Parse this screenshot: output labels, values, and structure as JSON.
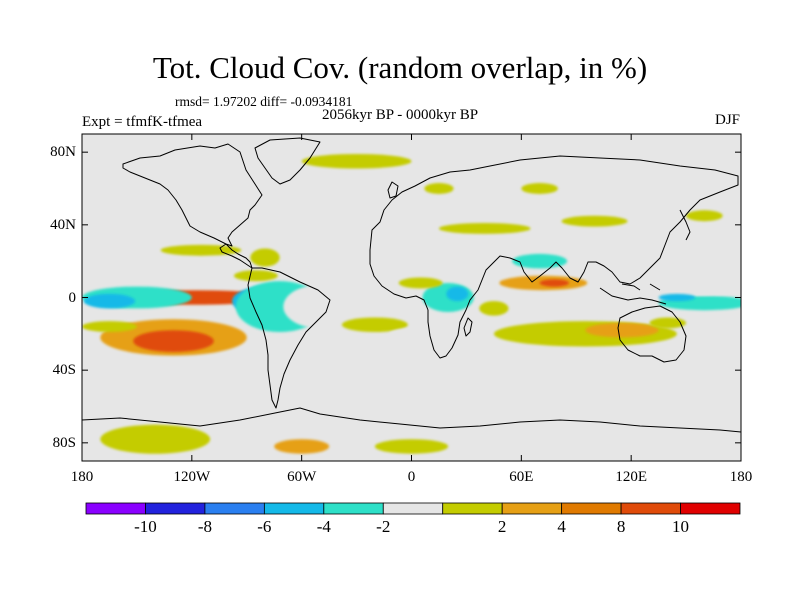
{
  "header": {
    "title": "Tot. Cloud Cov. (random overlap, in %)",
    "stats": "rmsd= 1.97202 diff= -0.0934181",
    "experiment": "Expt = tfmfK-tfmea",
    "period": "2056kyr BP - 0000kyr BP",
    "season": "DJF"
  },
  "map": {
    "projection": "cylindrical equidistant",
    "lon_range": [
      -180,
      180
    ],
    "lat_range": [
      -90,
      90
    ],
    "lat_ticks": [
      {
        "lat": 80,
        "label": "80N"
      },
      {
        "lat": 40,
        "label": "40N"
      },
      {
        "lat": 0,
        "label": "0"
      },
      {
        "lat": -40,
        "label": "40S"
      },
      {
        "lat": -80,
        "label": "80S"
      }
    ],
    "lon_ticks": [
      {
        "lon": -180,
        "label": "180"
      },
      {
        "lon": -120,
        "label": "120W"
      },
      {
        "lon": -60,
        "label": "60W"
      },
      {
        "lon": 0,
        "label": "0"
      },
      {
        "lon": 60,
        "label": "60E"
      },
      {
        "lon": 120,
        "label": "120E"
      },
      {
        "lon": 180,
        "label": "180"
      }
    ],
    "background_color": "#e6e6e6",
    "regions": [
      {
        "lon": -115,
        "lat": 0,
        "rlon": 35,
        "rlat": 2,
        "level": 10
      },
      {
        "lon": -118,
        "lat": 0,
        "rlon": 44,
        "rlat": 4,
        "level": 8
      },
      {
        "lon": -150,
        "lat": 0,
        "rlon": 30,
        "rlat": 6,
        "level": -4
      },
      {
        "lon": -165,
        "lat": -2,
        "rlon": 14,
        "rlat": 4,
        "level": -6
      },
      {
        "lon": -80,
        "lat": -2,
        "rlon": 18,
        "rlat": 8,
        "level": -6
      },
      {
        "lon": -72,
        "lat": -5,
        "rlon": 24,
        "rlat": 14,
        "level": -4
      },
      {
        "lon": -50,
        "lat": -5,
        "rlon": 20,
        "rlat": 12,
        "level": -2
      },
      {
        "lon": -130,
        "lat": -22,
        "rlon": 40,
        "rlat": 10,
        "level": 4
      },
      {
        "lon": -130,
        "lat": -24,
        "rlon": 22,
        "rlat": 6,
        "level": 8
      },
      {
        "lon": -165,
        "lat": -16,
        "rlon": 15,
        "rlat": 3,
        "level": 2
      },
      {
        "lon": -115,
        "lat": 26,
        "rlon": 22,
        "rlat": 3,
        "level": 2
      },
      {
        "lon": -80,
        "lat": 22,
        "rlon": 8,
        "rlat": 5,
        "level": 2
      },
      {
        "lon": -85,
        "lat": 12,
        "rlon": 12,
        "rlat": 3,
        "level": 2
      },
      {
        "lon": -20,
        "lat": -15,
        "rlon": 18,
        "rlat": 4,
        "level": 2
      },
      {
        "lon": 0,
        "lat": -20,
        "rlon": 12,
        "rlat": 3,
        "level": -2
      },
      {
        "lon": -30,
        "lat": -35,
        "rlon": 18,
        "rlat": 3,
        "level": -2
      },
      {
        "lon": 20,
        "lat": 0,
        "rlon": 14,
        "rlat": 8,
        "level": -4
      },
      {
        "lon": 25,
        "lat": 2,
        "rlon": 6,
        "rlat": 4,
        "level": -6
      },
      {
        "lon": 5,
        "lat": 8,
        "rlon": 12,
        "rlat": 3,
        "level": 2
      },
      {
        "lon": 40,
        "lat": -25,
        "rlon": 10,
        "rlat": 4,
        "level": -2
      },
      {
        "lon": 45,
        "lat": -6,
        "rlon": 8,
        "rlat": 4,
        "level": 2
      },
      {
        "lon": 72,
        "lat": 8,
        "rlon": 24,
        "rlat": 4,
        "level": 4
      },
      {
        "lon": 78,
        "lat": 8,
        "rlon": 8,
        "rlat": 2,
        "level": 8
      },
      {
        "lon": 95,
        "lat": -20,
        "rlon": 50,
        "rlat": 7,
        "level": 2
      },
      {
        "lon": 115,
        "lat": -18,
        "rlon": 20,
        "rlat": 4,
        "level": 4
      },
      {
        "lon": 95,
        "lat": -35,
        "rlon": 35,
        "rlat": 4,
        "level": -2
      },
      {
        "lon": 160,
        "lat": -3,
        "rlon": 25,
        "rlat": 4,
        "level": -4
      },
      {
        "lon": 155,
        "lat": 4,
        "rlon": 30,
        "rlat": 3,
        "level": -2
      },
      {
        "lon": 145,
        "lat": 0,
        "rlon": 10,
        "rlat": 2,
        "level": -6
      },
      {
        "lon": 140,
        "lat": -14,
        "rlon": 10,
        "rlat": 3,
        "level": 2
      },
      {
        "lon": 90,
        "lat": 30,
        "rlon": 25,
        "rlat": 6,
        "level": -2
      },
      {
        "lon": 70,
        "lat": 20,
        "rlon": 15,
        "rlat": 4,
        "level": -4
      },
      {
        "lon": 40,
        "lat": 38,
        "rlon": 25,
        "rlat": 3,
        "level": 2
      },
      {
        "lon": 100,
        "lat": 42,
        "rlon": 18,
        "rlat": 3,
        "level": 2
      },
      {
        "lon": 120,
        "lat": 28,
        "rlon": 12,
        "rlat": 5,
        "level": -2
      },
      {
        "lon": 155,
        "lat": 28,
        "rlon": 30,
        "rlat": 5,
        "level": -2
      },
      {
        "lon": 160,
        "lat": 45,
        "rlon": 10,
        "rlat": 3,
        "level": 2
      },
      {
        "lon": -30,
        "lat": 60,
        "rlon": 35,
        "rlat": 3,
        "level": -2
      },
      {
        "lon": -30,
        "lat": 75,
        "rlon": 30,
        "rlat": 4,
        "level": 2
      },
      {
        "lon": 60,
        "lat": 82,
        "rlon": 50,
        "rlat": 4,
        "level": -2
      },
      {
        "lon": 70,
        "lat": 60,
        "rlon": 10,
        "rlat": 3,
        "level": 2
      },
      {
        "lon": 15,
        "lat": 60,
        "rlon": 8,
        "rlat": 3,
        "level": 2
      },
      {
        "lon": -130,
        "lat": 50,
        "rlon": 8,
        "rlat": 3,
        "level": -2
      },
      {
        "lon": -150,
        "lat": -60,
        "rlon": 30,
        "rlat": 4,
        "level": -2
      },
      {
        "lon": -40,
        "lat": -65,
        "rlon": 12,
        "rlat": 3,
        "level": -2
      },
      {
        "lon": 20,
        "lat": -62,
        "rlon": 15,
        "rlat": 3,
        "level": -2
      },
      {
        "lon": 90,
        "lat": -64,
        "rlon": 60,
        "rlat": 4,
        "level": -2
      },
      {
        "lon": -140,
        "lat": -78,
        "rlon": 30,
        "rlat": 8,
        "level": 2
      },
      {
        "lon": -60,
        "lat": -82,
        "rlon": 15,
        "rlat": 4,
        "level": 4
      },
      {
        "lon": 0,
        "lat": -82,
        "rlon": 20,
        "rlat": 4,
        "level": 2
      }
    ]
  },
  "colorbar": {
    "colors": [
      "#8a00ff",
      "#2222dd",
      "#2a7ff0",
      "#14b9e8",
      "#2ee0c8",
      "#e6e6e6",
      "#c4cc00",
      "#e6a015",
      "#e07a00",
      "#e04b0a",
      "#e00000"
    ],
    "labels": [
      "-10",
      "-8",
      "-6",
      "-4",
      "-2",
      "2",
      "4",
      "8",
      "10"
    ],
    "levels": [
      -12,
      -10,
      -8,
      -6,
      -4,
      -2,
      2,
      4,
      6,
      8,
      10,
      12
    ]
  }
}
